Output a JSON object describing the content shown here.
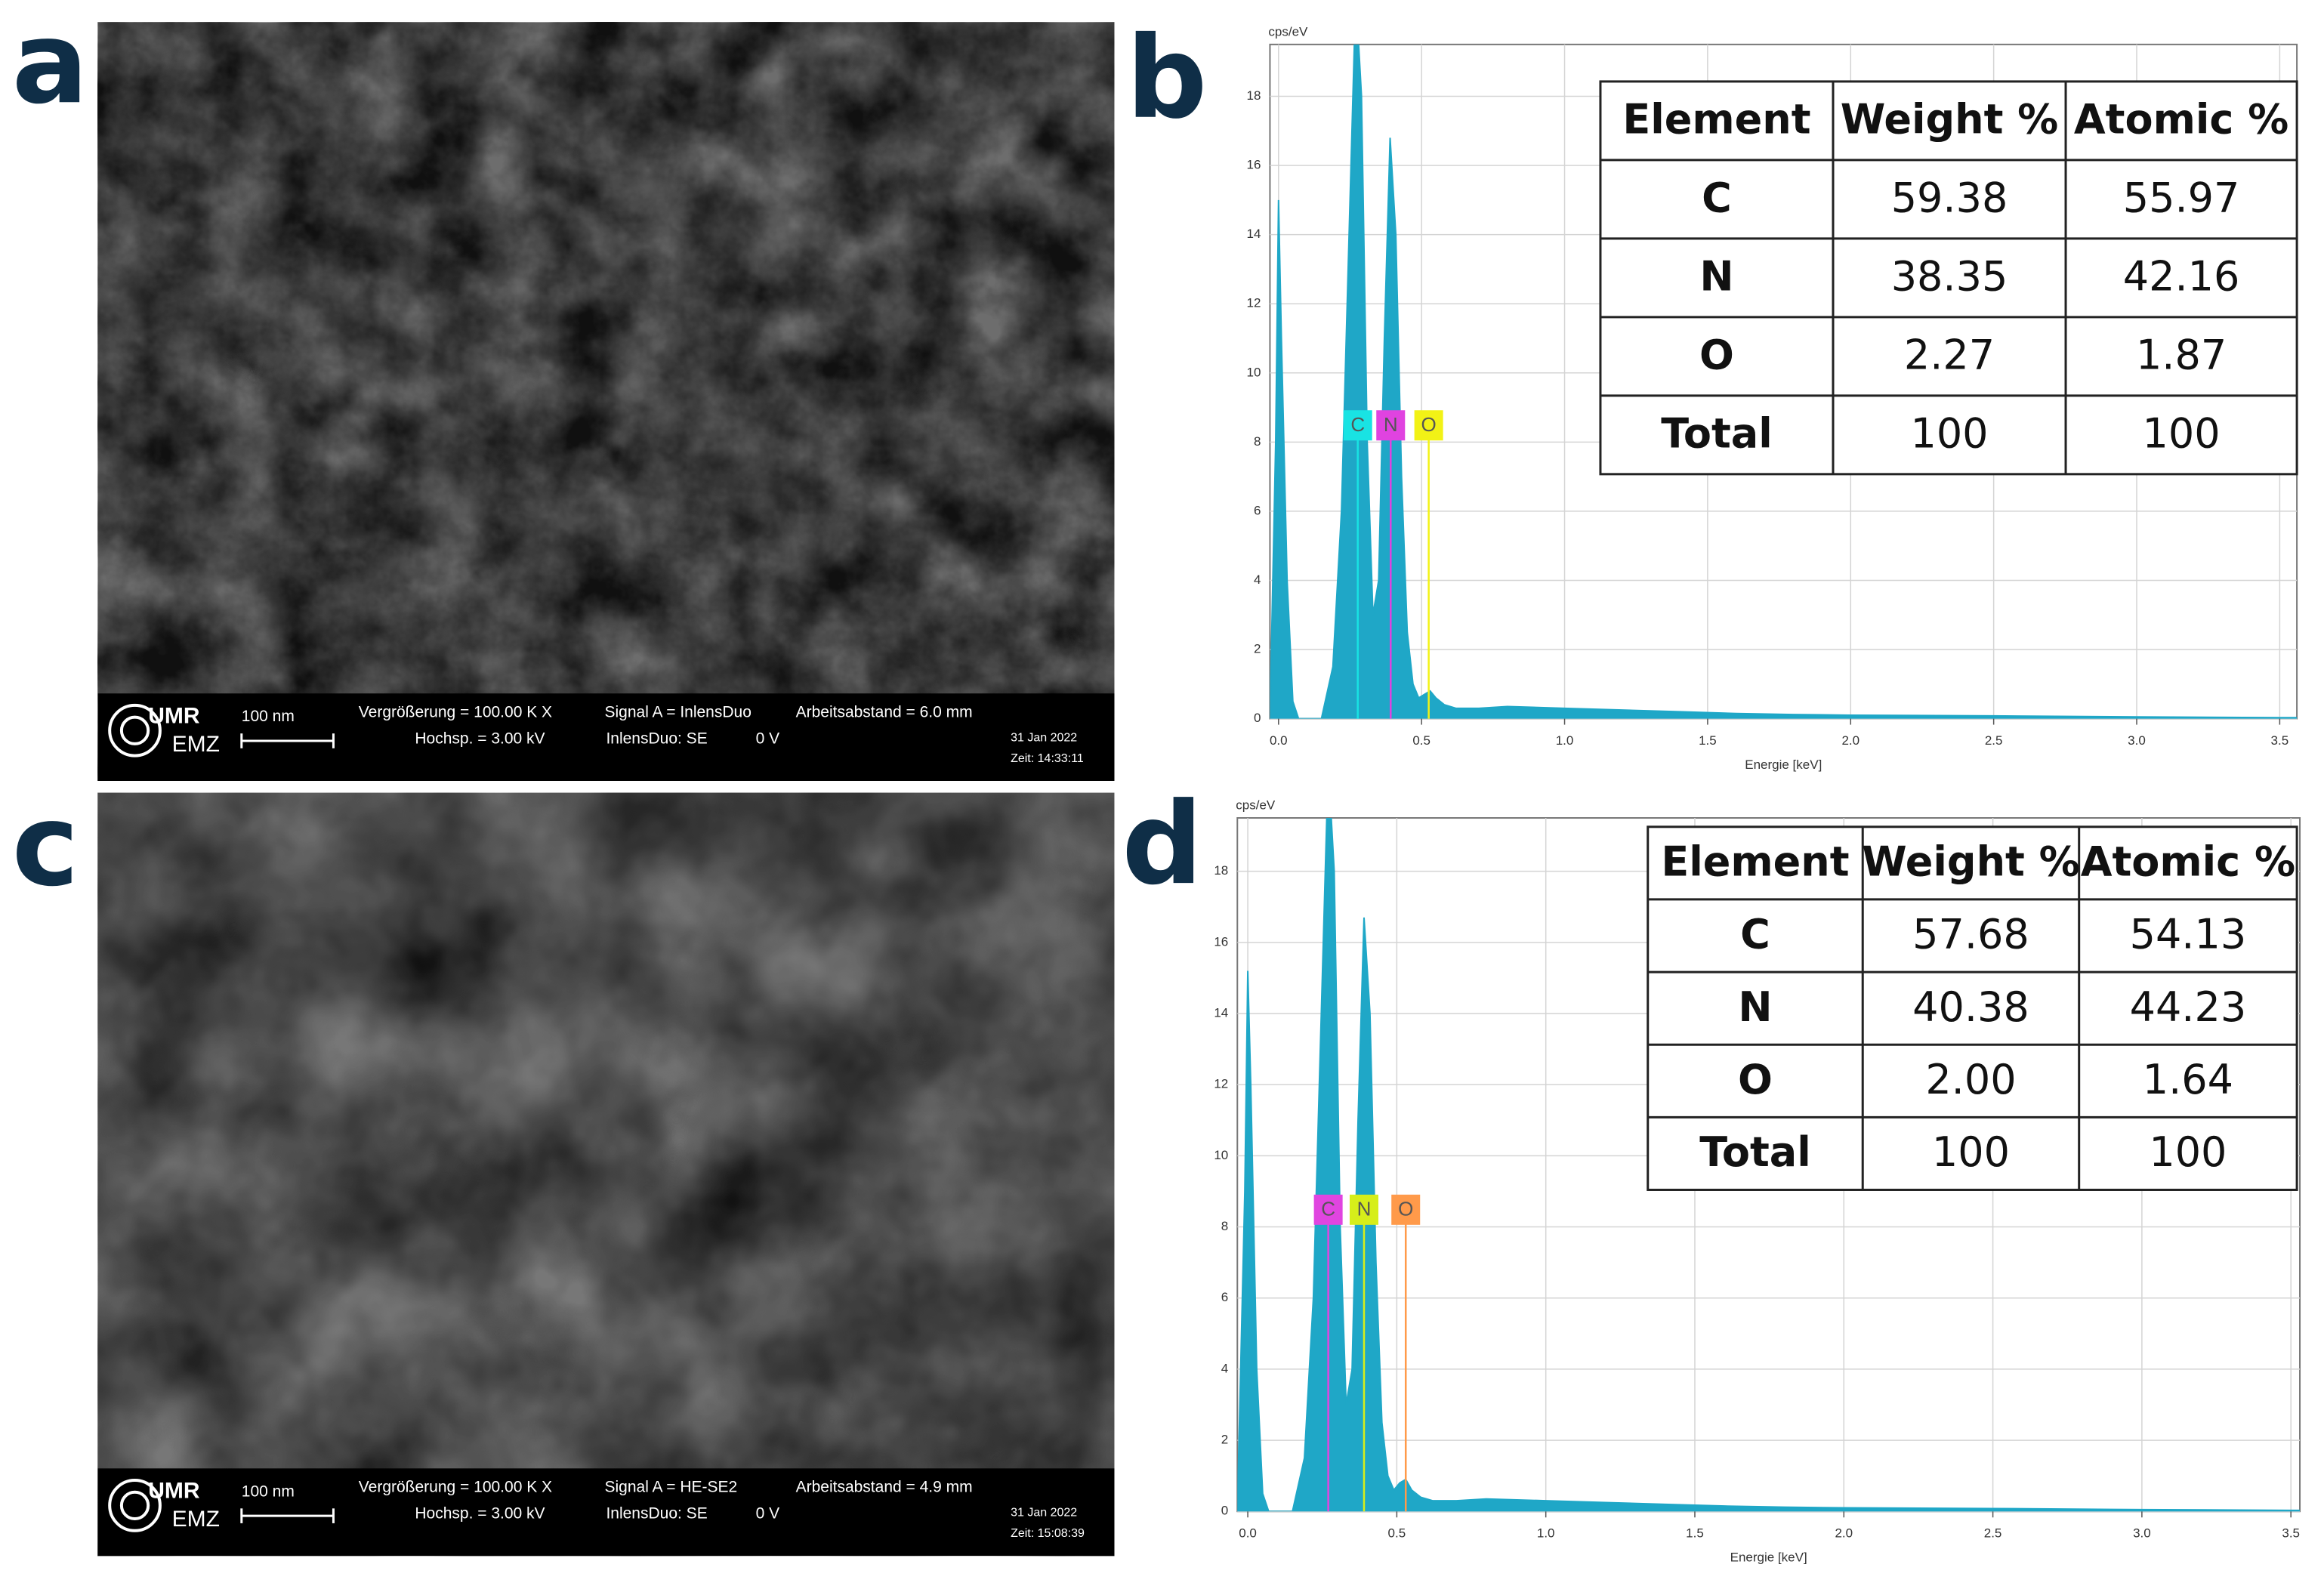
{
  "panel_labels": [
    "a",
    "b",
    "c",
    "d"
  ],
  "images": [
    {
      "logo_top": "UMR",
      "logo_bottom": "EMZ",
      "scale_bar": "100 nm",
      "magnification": "Vergrößerung = 100.00 K X",
      "signal": "Signal A = InlensDuo",
      "working_distance": "Arbeitsabstand = 6.0 mm",
      "voltage": "Hochsp. = 3.00 kV",
      "detector": "InlensDuo: SE",
      "bias": "0 V",
      "date": "31 Jan 2022",
      "time": "Zeit: 14:33:11"
    },
    {
      "logo_top": "UMR",
      "logo_bottom": "EMZ",
      "scale_bar": "100 nm",
      "magnification": "Vergrößerung = 100.00 K X",
      "signal": "Signal A = HE-SE2",
      "working_distance": "Arbeitsabstand = 4.9 mm",
      "voltage": "Hochsp. = 3.00 kV",
      "detector": "InlensDuo: SE",
      "bias": "0 V",
      "date": "31 Jan 2022",
      "time": "Zeit: 15:08:39"
    }
  ],
  "chart_data": [
    {
      "type": "area",
      "y_label": "cps/eV",
      "x_label": "Energie [keV]",
      "color": "#1fa7c7",
      "grid": true,
      "xlim": [
        -0.03,
        3.56
      ],
      "ylim": [
        0,
        19.5
      ],
      "xticks": [
        {
          "value": 0,
          "label": "0.0"
        },
        0.5,
        {
          "value": 1,
          "label": "1.0"
        },
        1.5,
        {
          "value": 2,
          "label": "2.0"
        },
        2.5,
        {
          "value": 3,
          "label": "3.0"
        },
        3.5
      ],
      "yticks": [
        0,
        2,
        4,
        6,
        8,
        10,
        12,
        14,
        16,
        18
      ],
      "x": [
        -0.03,
        -0.01,
        0.0,
        0.01,
        0.03,
        0.05,
        0.07,
        0.15,
        0.19,
        0.22,
        0.25,
        0.27,
        0.29,
        0.31,
        0.33,
        0.35,
        0.37,
        0.39,
        0.41,
        0.43,
        0.45,
        0.47,
        0.49,
        0.51,
        0.53,
        0.55,
        0.58,
        0.62,
        0.7,
        0.8,
        1.0,
        1.2,
        1.4,
        1.6,
        1.8,
        2.0,
        2.5,
        3.0,
        3.5,
        3.56
      ],
      "values": [
        0,
        8,
        15,
        11,
        4,
        0.5,
        0,
        0,
        1.5,
        6,
        15,
        21,
        18,
        8,
        3,
        4,
        11,
        16.8,
        14,
        7,
        2.5,
        1,
        0.6,
        0.7,
        0.8,
        0.6,
        0.4,
        0.3,
        0.3,
        0.35,
        0.3,
        0.25,
        0.2,
        0.15,
        0.12,
        0.1,
        0.08,
        0.05,
        0.03,
        0.03
      ],
      "element_lines": [
        {
          "name": "C",
          "energy": 0.277,
          "color": "#19e3e3"
        },
        {
          "name": "N",
          "energy": 0.392,
          "color": "#e043e0"
        },
        {
          "name": "O",
          "energy": 0.525,
          "color": "#f2f216"
        }
      ]
    },
    {
      "type": "area",
      "y_label": "cps/eV",
      "x_label": "Energie [keV]",
      "color": "#1fa7c7",
      "grid": true,
      "xlim": [
        -0.035,
        3.53
      ],
      "ylim": [
        0,
        19.5
      ],
      "xticks": [
        {
          "value": 0,
          "label": "0.0"
        },
        0.5,
        {
          "value": 1,
          "label": "1.0"
        },
        1.5,
        {
          "value": 2,
          "label": "2.0"
        },
        2.5,
        {
          "value": 3,
          "label": "3.0"
        },
        3.5
      ],
      "yticks": [
        0,
        2,
        4,
        6,
        8,
        10,
        12,
        14,
        16,
        18
      ],
      "x": [
        -0.035,
        -0.01,
        0.0,
        0.01,
        0.03,
        0.05,
        0.07,
        0.15,
        0.19,
        0.22,
        0.25,
        0.27,
        0.29,
        0.31,
        0.33,
        0.35,
        0.37,
        0.39,
        0.41,
        0.43,
        0.45,
        0.47,
        0.49,
        0.51,
        0.53,
        0.55,
        0.58,
        0.62,
        0.7,
        0.8,
        1.0,
        1.2,
        1.4,
        1.6,
        1.8,
        2.0,
        2.5,
        3.0,
        3.5,
        3.53
      ],
      "values": [
        0,
        9,
        15.2,
        12,
        4,
        0.5,
        0,
        0,
        1.5,
        6,
        15,
        21,
        18,
        8,
        3,
        4,
        11,
        16.7,
        14,
        7,
        2.5,
        1,
        0.6,
        0.8,
        0.9,
        0.6,
        0.4,
        0.3,
        0.3,
        0.35,
        0.3,
        0.25,
        0.2,
        0.15,
        0.12,
        0.1,
        0.08,
        0.05,
        0.03,
        0.03
      ],
      "element_lines": [
        {
          "name": "C",
          "energy": 0.27,
          "color": "#e045e0"
        },
        {
          "name": "N",
          "energy": 0.39,
          "color": "#d6ee1a"
        },
        {
          "name": "O",
          "energy": 0.53,
          "color": "#ff9a4a"
        }
      ]
    }
  ],
  "tables": [
    {
      "header": [
        "Element",
        "Weight %",
        "Atomic %"
      ],
      "rows": [
        [
          "C",
          "59.38",
          "55.97"
        ],
        [
          "N",
          "38.35",
          "42.16"
        ],
        [
          "O",
          "2.27",
          "1.87"
        ],
        [
          "Total",
          "100",
          "100"
        ]
      ]
    },
    {
      "header": [
        "Element",
        "Weight %",
        "Atomic %"
      ],
      "rows": [
        [
          "C",
          "57.68",
          "54.13"
        ],
        [
          "N",
          "40.38",
          "44.23"
        ],
        [
          "O",
          "2.00",
          "1.64"
        ],
        [
          "Total",
          "100",
          "100"
        ]
      ]
    }
  ]
}
